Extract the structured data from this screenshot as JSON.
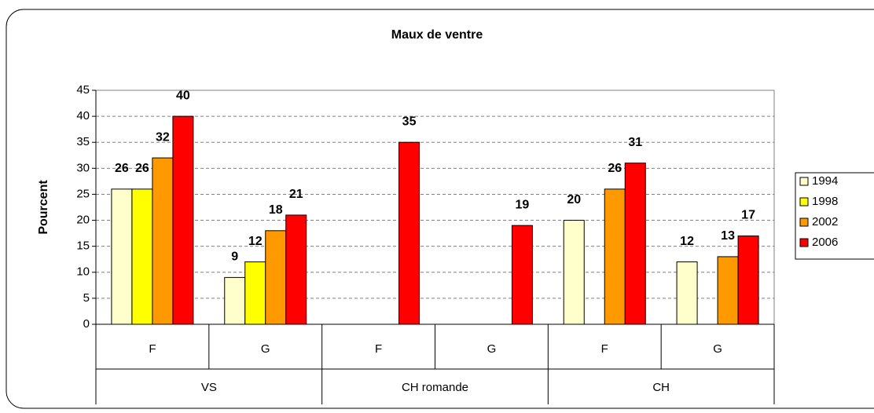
{
  "chart_data": {
    "type": "bar",
    "title": "Maux de ventre",
    "y_label": "Pourcent",
    "groups": [
      {
        "name": "VS",
        "categories": [
          "F",
          "G"
        ]
      },
      {
        "name": "CH romande",
        "categories": [
          "F",
          "G"
        ]
      },
      {
        "name": "CH",
        "categories": [
          "F",
          "G"
        ]
      }
    ],
    "series": [
      {
        "name": "1994",
        "color": "#ffffcc",
        "values": [
          26,
          9,
          null,
          null,
          20,
          12
        ]
      },
      {
        "name": "1998",
        "color": "#ffff00",
        "values": [
          26,
          12,
          null,
          null,
          null,
          null
        ]
      },
      {
        "name": "2002",
        "color": "#ff9900",
        "values": [
          32,
          18,
          null,
          null,
          26,
          13
        ]
      },
      {
        "name": "2006",
        "color": "#ff0000",
        "values": [
          40,
          21,
          35,
          19,
          31,
          17
        ]
      }
    ],
    "ylim": [
      0,
      45
    ],
    "yticks": [
      0,
      5,
      10,
      15,
      20,
      25,
      30,
      35,
      40,
      45
    ],
    "grid": true,
    "legend": "right"
  }
}
